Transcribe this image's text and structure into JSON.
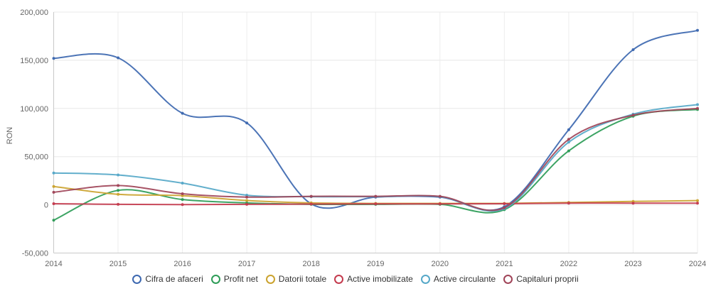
{
  "chart_data": {
    "type": "line",
    "title": "",
    "ylabel": "RON",
    "xlabel": "",
    "grid": true,
    "legend_position": "bottom",
    "xlim": [
      2014,
      2024
    ],
    "ylim": [
      -50000,
      200000
    ],
    "x": [
      2014,
      2015,
      2016,
      2017,
      2018,
      2019,
      2020,
      2021,
      2022,
      2023,
      2024
    ],
    "x_tick_labels": [
      "2014",
      "2015",
      "2016",
      "2017",
      "2018",
      "2019",
      "2020",
      "2021",
      "2022",
      "2023",
      "2024"
    ],
    "y_ticks": [
      {
        "value": 200000,
        "label": "200,000"
      },
      {
        "value": 150000,
        "label": "150,000"
      },
      {
        "value": 100000,
        "label": "100,000"
      },
      {
        "value": 50000,
        "label": "50,000"
      },
      {
        "value": 0,
        "label": "0"
      },
      {
        "value": -50000,
        "label": "-50,000"
      }
    ],
    "series": [
      {
        "name": "Cifra de afaceri",
        "color": "#3d68b0",
        "values": [
          152000,
          152500,
          95000,
          85000,
          1000,
          8000,
          8000,
          -2000,
          78000,
          161000,
          181000
        ]
      },
      {
        "name": "Profit net",
        "color": "#2d9c57",
        "values": [
          -16000,
          15000,
          5500,
          2000,
          500,
          500,
          500,
          -5000,
          56000,
          92000,
          99000
        ]
      },
      {
        "name": "Datorii totale",
        "color": "#cba32f",
        "values": [
          19000,
          11000,
          9500,
          4500,
          2000,
          1500,
          1500,
          1500,
          2500,
          3500,
          4400
        ]
      },
      {
        "name": "Active imobilizate",
        "color": "#c43b4e",
        "values": [
          1200,
          500,
          300,
          500,
          800,
          1000,
          1000,
          1200,
          1800,
          1800,
          1800
        ]
      },
      {
        "name": "Active circulante",
        "color": "#56a8c8",
        "values": [
          33000,
          31000,
          22500,
          10000,
          8500,
          8500,
          8500,
          -4000,
          65000,
          94000,
          104000
        ]
      },
      {
        "name": "Capitaluri proprii",
        "color": "#a04458",
        "values": [
          13000,
          20000,
          11500,
          8000,
          8800,
          8800,
          8800,
          -3000,
          68000,
          93000,
          100000
        ]
      }
    ],
    "style": {
      "grid_color_h": "#e8e8e8",
      "grid_color_v": "#ededed",
      "axis_color": "#c9c9c9",
      "tick_text_color": "#666666",
      "legend_text_color": "#333333"
    }
  }
}
